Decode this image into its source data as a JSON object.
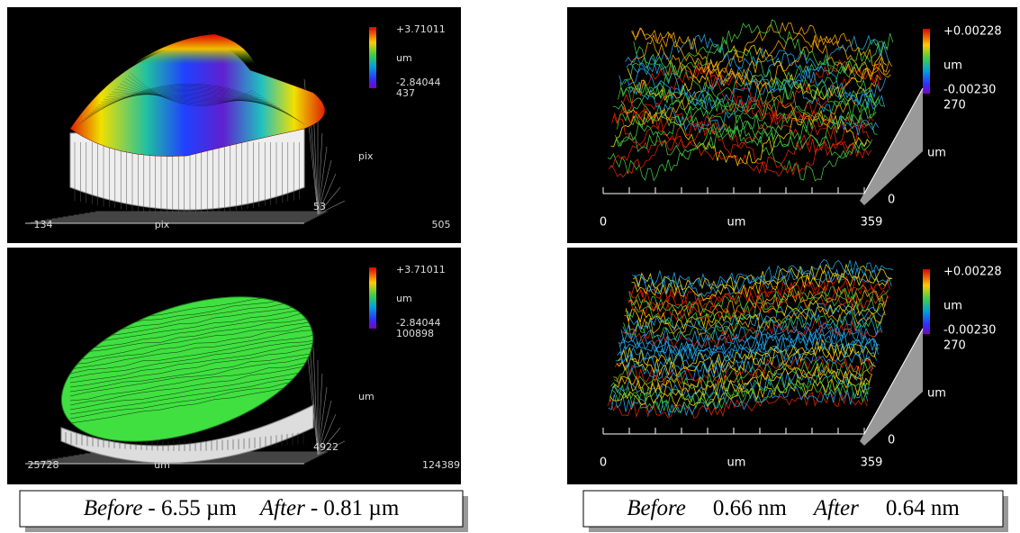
{
  "panels": [
    {
      "scale_max": "+3.71011",
      "scale_unit": "um",
      "scale_min": "-2.84044",
      "depth_max": "437",
      "depth_unit": "pix",
      "depth_min": "53",
      "x_min": "134",
      "x_unit": "pix",
      "x_max": "505"
    },
    {
      "scale_max": "+3.71011",
      "scale_unit": "um",
      "scale_min": "-2.84044",
      "depth_max": "100898",
      "depth_unit": "um",
      "depth_min": "4922",
      "x_min": "25728",
      "x_unit": "um",
      "x_max": "124389"
    },
    {
      "scale_max": "+0.00228",
      "scale_unit": "um",
      "scale_min": "-0.00230",
      "depth_max": "270",
      "depth_unit": "um",
      "depth_min": "0",
      "x_min": "0",
      "x_unit": "um",
      "x_max": "359"
    },
    {
      "scale_max": "+0.00228",
      "scale_unit": "um",
      "scale_min": "-0.00230",
      "depth_max": "270",
      "depth_unit": "um",
      "depth_min": "0",
      "x_min": "0",
      "x_unit": "um",
      "x_max": "359"
    }
  ],
  "captions": [
    {
      "before_label": "Before",
      "before_value": "- 6.55 µm",
      "after_label": "After",
      "after_value": "- 0.81 µm"
    },
    {
      "before_label": "Before",
      "before_value": "0.66 nm",
      "after_label": "After",
      "after_value": "0.64 nm"
    }
  ]
}
